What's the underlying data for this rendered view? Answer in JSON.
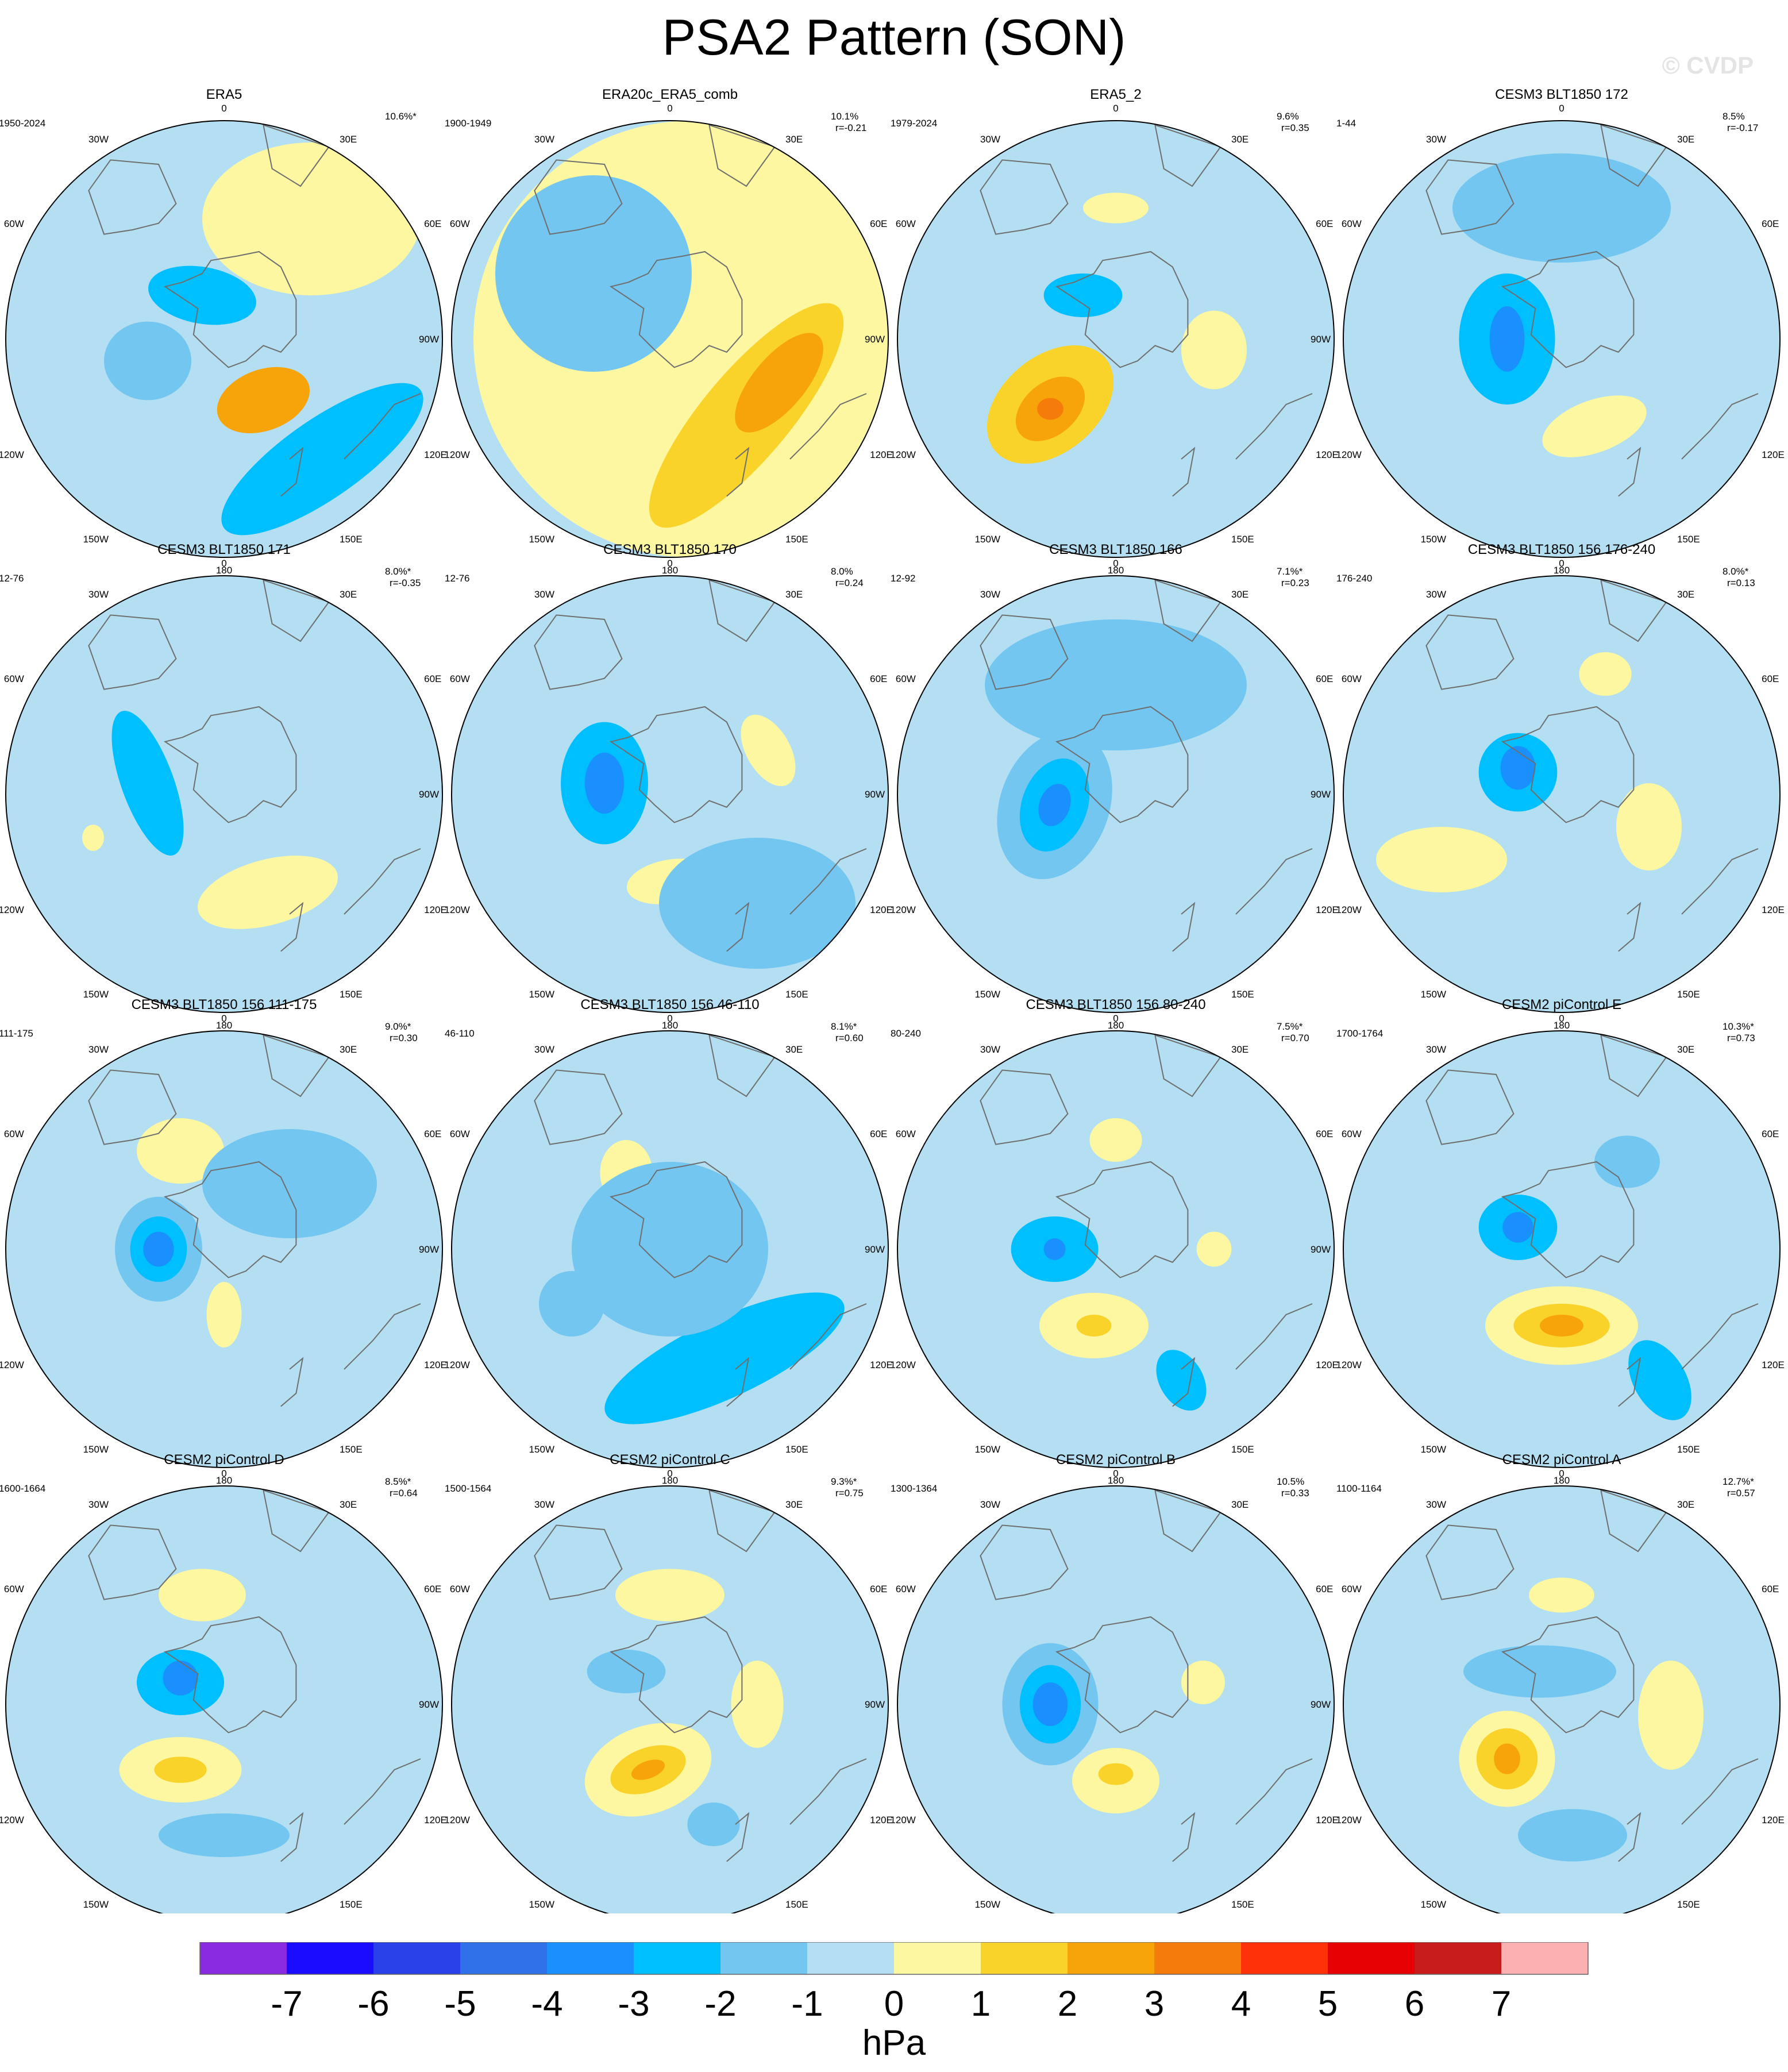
{
  "title": "PSA2 Pattern (SON)",
  "watermark": "© CVDP",
  "lon_labels": [
    "0",
    "30E",
    "60E",
    "90E",
    "120E",
    "150E",
    "180",
    "150W",
    "120W",
    "90W",
    "60W",
    "30W"
  ],
  "panels": [
    {
      "name": "ERA5",
      "years": "1950-2024",
      "pct": "10.6%*",
      "r": "",
      "blobs": [
        {
          "c": [
            0.18,
            -0.28
          ],
          "r": [
            0.22,
            0.14
          ],
          "rot": -20,
          "v": 3
        },
        {
          "c": [
            0.45,
            -0.55
          ],
          "r": [
            0.55,
            0.18
          ],
          "rot": -35,
          "v": -2
        },
        {
          "c": [
            -0.35,
            -0.1
          ],
          "r": [
            0.2,
            0.18
          ],
          "rot": 0,
          "v": -1
        },
        {
          "c": [
            -0.1,
            0.2
          ],
          "r": [
            0.25,
            0.13
          ],
          "rot": 10,
          "v": -2
        },
        {
          "c": [
            0.4,
            0.55
          ],
          "r": [
            0.5,
            0.35
          ],
          "rot": 0,
          "v": 1
        }
      ]
    },
    {
      "name": "ERA20c_ERA5_comb",
      "years": "1900-1949",
      "pct": "10.1%",
      "r": "r=-0.21",
      "blobs": [
        {
          "c": [
            0.1,
            0.0
          ],
          "r": [
            1.0,
            1.0
          ],
          "rot": 0,
          "v": 1
        },
        {
          "c": [
            0.35,
            -0.35
          ],
          "r": [
            0.65,
            0.2
          ],
          "rot": -50,
          "v": 2
        },
        {
          "c": [
            0.5,
            -0.2
          ],
          "r": [
            0.28,
            0.12
          ],
          "rot": -50,
          "v": 3
        },
        {
          "c": [
            -0.35,
            0.3
          ],
          "r": [
            0.45,
            0.45
          ],
          "rot": 0,
          "v": -1
        }
      ]
    },
    {
      "name": "ERA5_2",
      "years": "1979-2024",
      "pct": "9.6%",
      "r": "r=0.35",
      "blobs": [
        {
          "c": [
            -0.3,
            -0.3
          ],
          "r": [
            0.33,
            0.22
          ],
          "rot": -40,
          "v": 2
        },
        {
          "c": [
            -0.3,
            -0.32
          ],
          "r": [
            0.18,
            0.12
          ],
          "rot": -40,
          "v": 3
        },
        {
          "c": [
            -0.3,
            -0.32
          ],
          "r": [
            0.06,
            0.05
          ],
          "rot": 0,
          "v": 4
        },
        {
          "c": [
            0.45,
            -0.05
          ],
          "r": [
            0.15,
            0.18
          ],
          "rot": 0,
          "v": 1
        },
        {
          "c": [
            -0.15,
            0.2
          ],
          "r": [
            0.18,
            0.1
          ],
          "rot": 0,
          "v": -2
        },
        {
          "c": [
            0.0,
            0.6
          ],
          "r": [
            0.15,
            0.07
          ],
          "rot": 0,
          "v": 1
        }
      ]
    },
    {
      "name": "CESM3 BLT1850 172",
      "years": "1-44",
      "pct": "8.5%",
      "r": "r=-0.17",
      "blobs": [
        {
          "c": [
            -0.25,
            0.0
          ],
          "r": [
            0.22,
            0.3
          ],
          "rot": 0,
          "v": -2
        },
        {
          "c": [
            -0.25,
            0.0
          ],
          "r": [
            0.08,
            0.15
          ],
          "rot": 0,
          "v": -3
        },
        {
          "c": [
            0.15,
            -0.4
          ],
          "r": [
            0.25,
            0.12
          ],
          "rot": -20,
          "v": 1
        },
        {
          "c": [
            0.0,
            0.6
          ],
          "r": [
            0.5,
            0.25
          ],
          "rot": 0,
          "v": -1
        }
      ]
    },
    {
      "name": "CESM3 BLT1850 171",
      "years": "12-76",
      "pct": "8.0%*",
      "r": "r=-0.35",
      "blobs": [
        {
          "c": [
            -0.35,
            0.05
          ],
          "r": [
            0.12,
            0.35
          ],
          "rot": -20,
          "v": -2
        },
        {
          "c": [
            0.2,
            -0.45
          ],
          "r": [
            0.33,
            0.15
          ],
          "rot": -15,
          "v": 1
        },
        {
          "c": [
            -0.6,
            -0.2
          ],
          "r": [
            0.05,
            0.06
          ],
          "rot": 0,
          "v": 1
        }
      ]
    },
    {
      "name": "CESM3 BLT1850 170",
      "years": "12-76",
      "pct": "8.0%",
      "r": "r=0.24",
      "blobs": [
        {
          "c": [
            -0.3,
            0.05
          ],
          "r": [
            0.2,
            0.28
          ],
          "rot": 0,
          "v": -2
        },
        {
          "c": [
            -0.3,
            0.05
          ],
          "r": [
            0.09,
            0.14
          ],
          "rot": 0,
          "v": -3
        },
        {
          "c": [
            0.0,
            -0.4
          ],
          "r": [
            0.2,
            0.1
          ],
          "rot": -10,
          "v": 1
        },
        {
          "c": [
            0.45,
            0.2
          ],
          "r": [
            0.1,
            0.18
          ],
          "rot": -30,
          "v": 1
        },
        {
          "c": [
            0.4,
            -0.5
          ],
          "r": [
            0.45,
            0.3
          ],
          "rot": 0,
          "v": -1
        }
      ]
    },
    {
      "name": "CESM3 BLT1850 166",
      "years": "12-92",
      "pct": "7.1%*",
      "r": "r=0.23",
      "blobs": [
        {
          "c": [
            -0.28,
            -0.05
          ],
          "r": [
            0.25,
            0.35
          ],
          "rot": 20,
          "v": -1
        },
        {
          "c": [
            -0.28,
            -0.05
          ],
          "r": [
            0.15,
            0.22
          ],
          "rot": 20,
          "v": -2
        },
        {
          "c": [
            -0.28,
            -0.05
          ],
          "r": [
            0.07,
            0.1
          ],
          "rot": 20,
          "v": -3
        },
        {
          "c": [
            0.0,
            0.5
          ],
          "r": [
            0.6,
            0.3
          ],
          "rot": 0,
          "v": -1
        }
      ]
    },
    {
      "name": "CESM3 BLT1850 156 176-240",
      "years": "176-240",
      "pct": "8.0%*",
      "r": "r=0.13",
      "blobs": [
        {
          "c": [
            -0.2,
            0.1
          ],
          "r": [
            0.18,
            0.18
          ],
          "rot": 0,
          "v": -2
        },
        {
          "c": [
            -0.2,
            0.12
          ],
          "r": [
            0.08,
            0.1
          ],
          "rot": 0,
          "v": -3
        },
        {
          "c": [
            -0.55,
            -0.3
          ],
          "r": [
            0.3,
            0.15
          ],
          "rot": 0,
          "v": 1
        },
        {
          "c": [
            0.4,
            -0.15
          ],
          "r": [
            0.15,
            0.2
          ],
          "rot": 0,
          "v": 1
        },
        {
          "c": [
            0.2,
            0.55
          ],
          "r": [
            0.12,
            0.1
          ],
          "rot": 0,
          "v": 1
        }
      ]
    },
    {
      "name": "CESM3 BLT1850 156 111-175",
      "years": "111-175",
      "pct": "9.0%*",
      "r": "r=0.30",
      "blobs": [
        {
          "c": [
            -0.3,
            0.0
          ],
          "r": [
            0.2,
            0.24
          ],
          "rot": 0,
          "v": -1
        },
        {
          "c": [
            -0.3,
            0.0
          ],
          "r": [
            0.13,
            0.15
          ],
          "rot": 0,
          "v": -2
        },
        {
          "c": [
            -0.3,
            0.0
          ],
          "r": [
            0.07,
            0.08
          ],
          "rot": 0,
          "v": -3
        },
        {
          "c": [
            -0.2,
            0.45
          ],
          "r": [
            0.2,
            0.15
          ],
          "rot": 0,
          "v": 1
        },
        {
          "c": [
            0.0,
            -0.3
          ],
          "r": [
            0.08,
            0.15
          ],
          "rot": 0,
          "v": 1
        },
        {
          "c": [
            0.3,
            0.3
          ],
          "r": [
            0.4,
            0.25
          ],
          "rot": 0,
          "v": -1
        }
      ]
    },
    {
      "name": "CESM3 BLT1850 156 46-110",
      "years": "46-110",
      "pct": "8.1%*",
      "r": "r=0.60",
      "blobs": [
        {
          "c": [
            0.25,
            -0.5
          ],
          "r": [
            0.6,
            0.18
          ],
          "rot": -25,
          "v": -2
        },
        {
          "c": [
            -0.45,
            -0.25
          ],
          "r": [
            0.15,
            0.15
          ],
          "rot": 0,
          "v": -1
        },
        {
          "c": [
            -0.2,
            0.35
          ],
          "r": [
            0.12,
            0.15
          ],
          "rot": 0,
          "v": 1
        },
        {
          "c": [
            0.0,
            0.0
          ],
          "r": [
            0.45,
            0.4
          ],
          "rot": 0,
          "v": -1
        }
      ]
    },
    {
      "name": "CESM3 BLT1850 156 80-240",
      "years": "80-240",
      "pct": "7.5%*",
      "r": "r=0.70",
      "blobs": [
        {
          "c": [
            -0.28,
            0.0
          ],
          "r": [
            0.2,
            0.15
          ],
          "rot": 0,
          "v": -2
        },
        {
          "c": [
            -0.28,
            0.0
          ],
          "r": [
            0.05,
            0.05
          ],
          "rot": 0,
          "v": -3
        },
        {
          "c": [
            -0.1,
            -0.35
          ],
          "r": [
            0.25,
            0.15
          ],
          "rot": 0,
          "v": 1
        },
        {
          "c": [
            -0.1,
            -0.35
          ],
          "r": [
            0.08,
            0.05
          ],
          "rot": 0,
          "v": 2
        },
        {
          "c": [
            0.3,
            -0.6
          ],
          "r": [
            0.1,
            0.15
          ],
          "rot": -30,
          "v": -2
        },
        {
          "c": [
            0.0,
            0.5
          ],
          "r": [
            0.12,
            0.1
          ],
          "rot": 0,
          "v": 1
        },
        {
          "c": [
            0.45,
            0.0
          ],
          "r": [
            0.08,
            0.08
          ],
          "rot": 0,
          "v": 1
        }
      ]
    },
    {
      "name": "CESM2 piControl E",
      "years": "1700-1764",
      "pct": "10.3%*",
      "r": "r=0.73",
      "blobs": [
        {
          "c": [
            -0.2,
            0.1
          ],
          "r": [
            0.18,
            0.15
          ],
          "rot": 0,
          "v": -2
        },
        {
          "c": [
            -0.2,
            0.1
          ],
          "r": [
            0.07,
            0.07
          ],
          "rot": 0,
          "v": -3
        },
        {
          "c": [
            0.0,
            -0.35
          ],
          "r": [
            0.35,
            0.18
          ],
          "rot": 0,
          "v": 1
        },
        {
          "c": [
            0.0,
            -0.35
          ],
          "r": [
            0.22,
            0.1
          ],
          "rot": 0,
          "v": 2
        },
        {
          "c": [
            0.0,
            -0.35
          ],
          "r": [
            0.1,
            0.05
          ],
          "rot": 0,
          "v": 3
        },
        {
          "c": [
            0.3,
            0.4
          ],
          "r": [
            0.15,
            0.12
          ],
          "rot": 0,
          "v": -1
        },
        {
          "c": [
            0.45,
            -0.6
          ],
          "r": [
            0.12,
            0.2
          ],
          "rot": -30,
          "v": -2
        }
      ]
    },
    {
      "name": "CESM2 piControl D",
      "years": "1600-1664",
      "pct": "8.5%*",
      "r": "r=0.64",
      "blobs": [
        {
          "c": [
            -0.2,
            0.1
          ],
          "r": [
            0.2,
            0.15
          ],
          "rot": 0,
          "v": -2
        },
        {
          "c": [
            -0.2,
            0.12
          ],
          "r": [
            0.08,
            0.08
          ],
          "rot": 0,
          "v": -3
        },
        {
          "c": [
            -0.2,
            -0.3
          ],
          "r": [
            0.28,
            0.15
          ],
          "rot": 0,
          "v": 1
        },
        {
          "c": [
            -0.2,
            -0.3
          ],
          "r": [
            0.12,
            0.06
          ],
          "rot": 0,
          "v": 2
        },
        {
          "c": [
            0.0,
            -0.6
          ],
          "r": [
            0.3,
            0.1
          ],
          "rot": 0,
          "v": -1
        },
        {
          "c": [
            -0.1,
            0.5
          ],
          "r": [
            0.2,
            0.12
          ],
          "rot": 0,
          "v": 1
        }
      ]
    },
    {
      "name": "CESM2 piControl C",
      "years": "1500-1564",
      "pct": "9.3%*",
      "r": "r=0.75",
      "blobs": [
        {
          "c": [
            -0.1,
            -0.3
          ],
          "r": [
            0.3,
            0.2
          ],
          "rot": -20,
          "v": 1
        },
        {
          "c": [
            -0.1,
            -0.3
          ],
          "r": [
            0.18,
            0.1
          ],
          "rot": -20,
          "v": 2
        },
        {
          "c": [
            -0.1,
            -0.3
          ],
          "r": [
            0.08,
            0.04
          ],
          "rot": -20,
          "v": 3
        },
        {
          "c": [
            0.0,
            0.5
          ],
          "r": [
            0.25,
            0.12
          ],
          "rot": 0,
          "v": 1
        },
        {
          "c": [
            0.4,
            0.0
          ],
          "r": [
            0.12,
            0.2
          ],
          "rot": 0,
          "v": 1
        },
        {
          "c": [
            -0.2,
            0.15
          ],
          "r": [
            0.18,
            0.1
          ],
          "rot": 0,
          "v": -1
        },
        {
          "c": [
            0.2,
            -0.55
          ],
          "r": [
            0.12,
            0.1
          ],
          "rot": 0,
          "v": -1
        }
      ]
    },
    {
      "name": "CESM2 piControl B",
      "years": "1300-1364",
      "pct": "10.5%",
      "r": "r=0.33",
      "blobs": [
        {
          "c": [
            -0.3,
            0.0
          ],
          "r": [
            0.22,
            0.28
          ],
          "rot": 0,
          "v": -1
        },
        {
          "c": [
            -0.3,
            0.0
          ],
          "r": [
            0.14,
            0.18
          ],
          "rot": 0,
          "v": -2
        },
        {
          "c": [
            -0.3,
            0.0
          ],
          "r": [
            0.08,
            0.1
          ],
          "rot": 0,
          "v": -3
        },
        {
          "c": [
            0.0,
            -0.35
          ],
          "r": [
            0.2,
            0.15
          ],
          "rot": 0,
          "v": 1
        },
        {
          "c": [
            0.0,
            -0.32
          ],
          "r": [
            0.08,
            0.05
          ],
          "rot": 0,
          "v": 2
        },
        {
          "c": [
            0.4,
            0.1
          ],
          "r": [
            0.1,
            0.1
          ],
          "rot": 0,
          "v": 1
        }
      ]
    },
    {
      "name": "CESM2 piControl A",
      "years": "1100-1164",
      "pct": "12.7%*",
      "r": "r=0.57",
      "blobs": [
        {
          "c": [
            -0.25,
            -0.25
          ],
          "r": [
            0.22,
            0.22
          ],
          "rot": 0,
          "v": 1
        },
        {
          "c": [
            -0.25,
            -0.25
          ],
          "r": [
            0.14,
            0.14
          ],
          "rot": 0,
          "v": 2
        },
        {
          "c": [
            -0.25,
            -0.25
          ],
          "r": [
            0.06,
            0.07
          ],
          "rot": 0,
          "v": 3
        },
        {
          "c": [
            0.5,
            -0.05
          ],
          "r": [
            0.15,
            0.25
          ],
          "rot": 0,
          "v": 1
        },
        {
          "c": [
            -0.1,
            0.15
          ],
          "r": [
            0.35,
            0.12
          ],
          "rot": 0,
          "v": -1
        },
        {
          "c": [
            0.0,
            0.5
          ],
          "r": [
            0.15,
            0.08
          ],
          "rot": 0,
          "v": 1
        },
        {
          "c": [
            0.05,
            -0.6
          ],
          "r": [
            0.25,
            0.12
          ],
          "rot": 0,
          "v": -1
        }
      ]
    }
  ],
  "colorbar": {
    "colors": [
      "#8a2be2",
      "#1a0dff",
      "#2a40e8",
      "#3070e8",
      "#1a90ff",
      "#00bfff",
      "#72c6f0",
      "#b4dff2",
      "#fcf7a0",
      "#f9d22a",
      "#f7a30a",
      "#f57b0b",
      "#fd3008",
      "#e60003",
      "#c81b1b",
      "#fbb1b1"
    ],
    "tick_labels": [
      "-7",
      "-6",
      "-5",
      "-4",
      "-3",
      "-2",
      "-1",
      "0",
      "1",
      "2",
      "3",
      "4",
      "5",
      "6",
      "7"
    ],
    "units": "hPa"
  }
}
